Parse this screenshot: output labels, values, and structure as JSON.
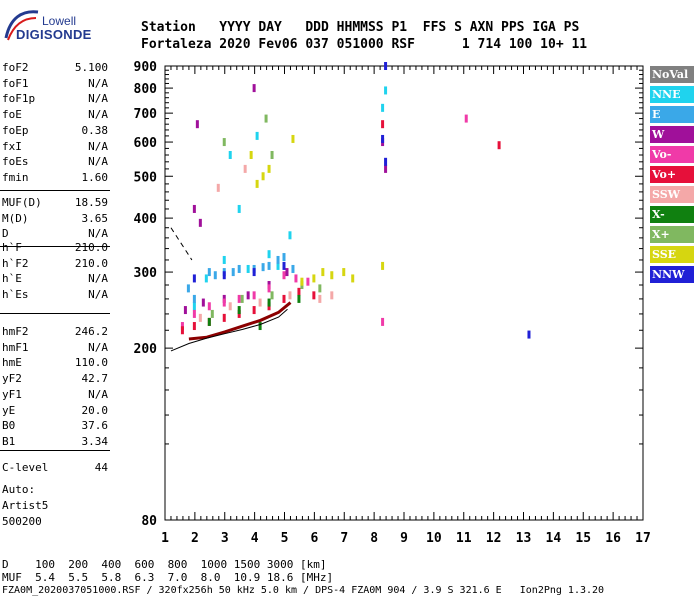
{
  "logo": {
    "line1": "Lowell",
    "line2": "DIGISONDE"
  },
  "header": {
    "line1": "Station   YYYY DAY   DDD HHMMSS P1  FFS S AXN PPS IGA PS",
    "line2": "Fortaleza 2020 Fev06 037 051000 RSF      1 714 100 10+ 11"
  },
  "params": {
    "group1": [
      {
        "name": "foF2",
        "value": "5.100"
      },
      {
        "name": "foF1",
        "value": "N/A"
      },
      {
        "name": "foF1p",
        "value": "N/A"
      },
      {
        "name": "foE",
        "value": "N/A"
      },
      {
        "name": "foEp",
        "value": "0.38"
      },
      {
        "name": "fxI",
        "value": "N/A"
      },
      {
        "name": "foEs",
        "value": "N/A"
      },
      {
        "name": "fmin",
        "value": "1.60"
      }
    ],
    "group2": [
      {
        "name": "MUF(D)",
        "value": "18.59"
      },
      {
        "name": "M(D)",
        "value": "3.65"
      },
      {
        "name": "D",
        "value": "N/A"
      }
    ],
    "group3": [
      {
        "name": "h`F",
        "value": "210.0"
      },
      {
        "name": "h`F2",
        "value": "210.0"
      },
      {
        "name": "h`E",
        "value": "N/A"
      },
      {
        "name": "h`Es",
        "value": "N/A"
      }
    ],
    "group4": [
      {
        "name": "hmF2",
        "value": "246.2"
      },
      {
        "name": "hmF1",
        "value": "N/A"
      },
      {
        "name": "hmE",
        "value": "110.0"
      },
      {
        "name": "yF2",
        "value": "42.7"
      },
      {
        "name": "yF1",
        "value": "N/A"
      },
      {
        "name": "yE",
        "value": "20.0"
      },
      {
        "name": "B0",
        "value": "37.6"
      },
      {
        "name": "B1",
        "value": "3.34"
      }
    ],
    "group5": [
      {
        "name": "C-level",
        "value": "44"
      }
    ],
    "auto": [
      "Auto:",
      "Artist5",
      "500200"
    ]
  },
  "legend": [
    {
      "label": "NoVal",
      "color": "#808080"
    },
    {
      "label": "NNE",
      "color": "#1fd3ee"
    },
    {
      "label": "E",
      "color": "#3aa8e8"
    },
    {
      "label": "W",
      "color": "#a0109a"
    },
    {
      "label": "Vo-",
      "color": "#f03aa8"
    },
    {
      "label": "Vo+",
      "color": "#e6103a"
    },
    {
      "label": "SSW",
      "color": "#f4a8a8"
    },
    {
      "label": "X-",
      "color": "#108010"
    },
    {
      "label": "X+",
      "color": "#80b860"
    },
    {
      "label": "SSE",
      "color": "#d6d610"
    },
    {
      "label": "NNW",
      "color": "#2020d6"
    }
  ],
  "chart_data": {
    "type": "scatter",
    "title": "",
    "xlabel": "",
    "ylabel": "",
    "xlim": [
      1,
      17
    ],
    "ylim": [
      80,
      900
    ],
    "y_scale": "log",
    "xticks": [
      "1",
      "2",
      "3",
      "4",
      "5",
      "6",
      "7",
      "8",
      "9",
      "10",
      "11",
      "12",
      "13",
      "14",
      "15",
      "16",
      "17"
    ],
    "yticks": [
      "80",
      "200",
      "300",
      "400",
      "500",
      "600",
      "700",
      "800",
      "900"
    ],
    "series": [
      {
        "name": "NNE",
        "color": "#1fd3ee",
        "points": [
          [
            2.0,
            250
          ],
          [
            3.0,
            320
          ],
          [
            3.5,
            420
          ],
          [
            4.5,
            330
          ],
          [
            5.2,
            365
          ],
          [
            3.2,
            560
          ],
          [
            4.1,
            620
          ],
          [
            8.3,
            720
          ],
          [
            8.4,
            790
          ],
          [
            2.4,
            290
          ],
          [
            3.8,
            305
          ],
          [
            4.8,
            310
          ]
        ]
      },
      {
        "name": "E",
        "color": "#3aa8e8",
        "points": [
          [
            2.0,
            260
          ],
          [
            2.5,
            300
          ],
          [
            3.0,
            300
          ],
          [
            3.5,
            305
          ],
          [
            4.0,
            305
          ],
          [
            4.5,
            310
          ],
          [
            5.0,
            325
          ],
          [
            5.3,
            305
          ],
          [
            1.8,
            275
          ],
          [
            2.7,
            295
          ],
          [
            3.3,
            300
          ],
          [
            4.3,
            308
          ],
          [
            4.8,
            320
          ]
        ]
      },
      {
        "name": "W",
        "color": "#a0109a",
        "points": [
          [
            1.7,
            245
          ],
          [
            2.3,
            255
          ],
          [
            3.0,
            260
          ],
          [
            3.8,
            265
          ],
          [
            4.5,
            280
          ],
          [
            5.1,
            300
          ],
          [
            2.0,
            420
          ],
          [
            2.2,
            390
          ],
          [
            2.1,
            660
          ],
          [
            4.0,
            800
          ],
          [
            8.3,
            600
          ],
          [
            8.4,
            520
          ]
        ]
      },
      {
        "name": "Vo-",
        "color": "#f03aa8",
        "points": [
          [
            1.6,
            225
          ],
          [
            2.0,
            240
          ],
          [
            2.5,
            250
          ],
          [
            3.0,
            255
          ],
          [
            3.5,
            260
          ],
          [
            4.0,
            265
          ],
          [
            4.5,
            275
          ],
          [
            5.0,
            295
          ],
          [
            5.4,
            290
          ],
          [
            5.8,
            285
          ],
          [
            8.3,
            230
          ],
          [
            11.1,
            680
          ]
        ]
      },
      {
        "name": "Vo+",
        "color": "#e6103a",
        "points": [
          [
            1.6,
            220
          ],
          [
            2.0,
            225
          ],
          [
            2.5,
            230
          ],
          [
            3.0,
            235
          ],
          [
            3.5,
            240
          ],
          [
            4.0,
            245
          ],
          [
            4.5,
            250
          ],
          [
            5.0,
            260
          ],
          [
            5.5,
            270
          ],
          [
            6.0,
            265
          ],
          [
            8.3,
            660
          ],
          [
            12.2,
            590
          ]
        ]
      },
      {
        "name": "SSW",
        "color": "#f4a8a8",
        "points": [
          [
            2.2,
            235
          ],
          [
            3.2,
            250
          ],
          [
            4.2,
            255
          ],
          [
            5.2,
            265
          ],
          [
            6.2,
            260
          ],
          [
            6.6,
            265
          ],
          [
            3.7,
            520
          ],
          [
            2.8,
            470
          ]
        ]
      },
      {
        "name": "X-",
        "color": "#108010",
        "points": [
          [
            2.5,
            230
          ],
          [
            3.5,
            245
          ],
          [
            4.5,
            255
          ],
          [
            5.5,
            260
          ],
          [
            4.2,
            225
          ]
        ]
      },
      {
        "name": "X+",
        "color": "#80b860",
        "points": [
          [
            2.6,
            240
          ],
          [
            3.6,
            260
          ],
          [
            4.6,
            265
          ],
          [
            5.6,
            280
          ],
          [
            6.2,
            275
          ],
          [
            3.0,
            600
          ],
          [
            4.4,
            680
          ],
          [
            4.6,
            560
          ]
        ]
      },
      {
        "name": "SSE",
        "color": "#d6d610",
        "points": [
          [
            5.6,
            285
          ],
          [
            6.0,
            290
          ],
          [
            6.3,
            300
          ],
          [
            6.6,
            295
          ],
          [
            7.0,
            300
          ],
          [
            7.3,
            290
          ],
          [
            4.3,
            500
          ],
          [
            4.5,
            520
          ],
          [
            4.1,
            480
          ],
          [
            5.3,
            610
          ],
          [
            3.9,
            560
          ],
          [
            8.3,
            310
          ]
        ]
      },
      {
        "name": "NNW",
        "color": "#2020d6",
        "points": [
          [
            2.0,
            290
          ],
          [
            3.0,
            295
          ],
          [
            4.0,
            300
          ],
          [
            5.0,
            310
          ],
          [
            8.4,
            900
          ],
          [
            8.4,
            540
          ],
          [
            8.3,
            610
          ],
          [
            13.2,
            215
          ]
        ]
      }
    ],
    "trace": {
      "x": [
        1.8,
        2.4,
        3.0,
        3.6,
        4.2,
        4.8,
        5.2
      ],
      "y": [
        210,
        212,
        218,
        225,
        232,
        242,
        255
      ]
    },
    "profile": {
      "x": [
        1.2,
        1.8,
        2.4,
        3.0,
        3.6,
        4.2,
        4.8,
        5.1
      ],
      "y": [
        197,
        205,
        211,
        216,
        221,
        227,
        236,
        246
      ]
    },
    "dashed": {
      "x": [
        1.2,
        1.9
      ],
      "y": [
        380,
        320
      ]
    }
  },
  "freq_table": {
    "line1": "D    100  200  400  600  800  1000 1500 3000 [km]",
    "line2": "MUF  5.4  5.5  5.8  6.3  7.0  8.0  10.9 18.6 [MHz]"
  },
  "footer": "FZA0M_2020037051000.RSF / 320fx256h 50 kHz 5.0 km / DPS-4 FZA0M 904 / 3.9 S 321.6 E   Ion2Png 1.3.20"
}
